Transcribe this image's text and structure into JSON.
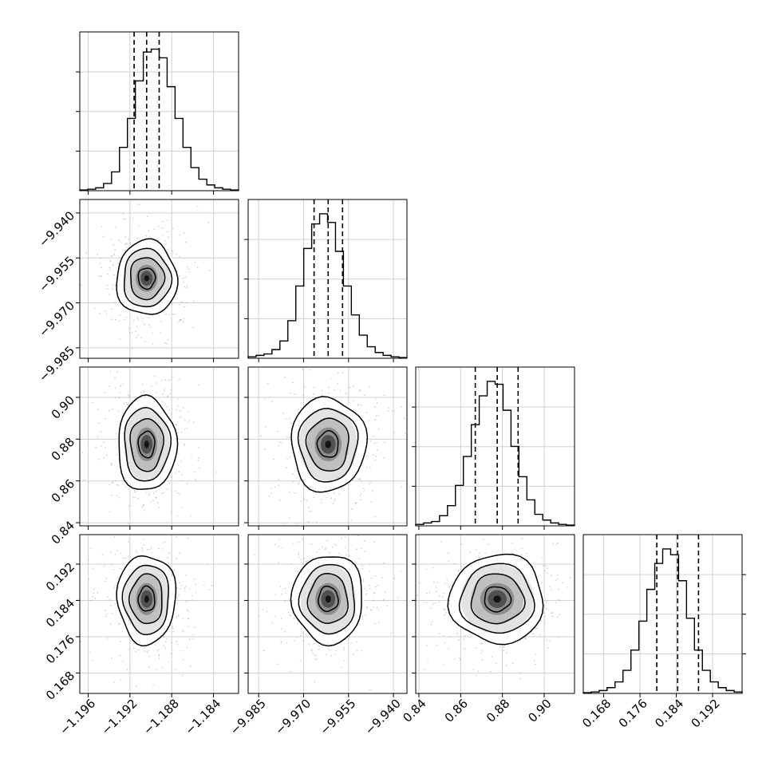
{
  "chart_data": {
    "type": "corner",
    "parameters": [
      {
        "range": [
          -1.1968,
          -1.1816
        ],
        "ticks": [
          -1.196,
          -1.192,
          -1.188,
          -1.184
        ],
        "tick_labels": [
          "−1.196",
          "−1.192",
          "−1.188",
          "−1.184"
        ]
      },
      {
        "range": [
          -9.9885,
          -9.9355
        ],
        "ticks": [
          -9.985,
          -9.97,
          -9.955,
          -9.94
        ],
        "tick_labels": [
          "−9.985",
          "−9.970",
          "−9.955",
          "−9.940"
        ]
      },
      {
        "range": [
          0.8385,
          0.9145
        ],
        "ticks": [
          0.84,
          0.86,
          0.88,
          0.9
        ],
        "tick_labels": [
          "0.84",
          "0.86",
          "0.88",
          "0.90"
        ]
      },
      {
        "range": [
          0.1635,
          0.1985
        ],
        "ticks": [
          0.168,
          0.176,
          0.184,
          0.192
        ],
        "tick_labels": [
          "0.168",
          "0.176",
          "0.184",
          "0.192"
        ]
      }
    ],
    "quantiles": [
      [
        -1.1916,
        -1.1904,
        -1.1892
      ],
      [
        -9.9665,
        -9.9618,
        -9.957
      ],
      [
        0.867,
        0.8775,
        0.8875
      ],
      [
        0.1797,
        0.1843,
        0.1889
      ]
    ],
    "histograms": [
      [
        0.005,
        0.01,
        0.02,
        0.05,
        0.13,
        0.3,
        0.5,
        0.76,
        0.96,
        0.98,
        0.92,
        0.72,
        0.5,
        0.3,
        0.16,
        0.08,
        0.04,
        0.02,
        0.01,
        0.005
      ],
      [
        0.01,
        0.02,
        0.03,
        0.06,
        0.12,
        0.26,
        0.5,
        0.76,
        0.93,
        1.0,
        0.94,
        0.74,
        0.5,
        0.3,
        0.16,
        0.08,
        0.04,
        0.02,
        0.01,
        0.005
      ],
      [
        0.01,
        0.02,
        0.03,
        0.07,
        0.14,
        0.28,
        0.48,
        0.7,
        0.9,
        1.0,
        0.98,
        0.8,
        0.55,
        0.34,
        0.18,
        0.08,
        0.04,
        0.02,
        0.01,
        0.005
      ],
      [
        0.005,
        0.01,
        0.02,
        0.04,
        0.08,
        0.16,
        0.3,
        0.5,
        0.72,
        0.9,
        1.0,
        0.96,
        0.78,
        0.52,
        0.3,
        0.16,
        0.08,
        0.04,
        0.02,
        0.01
      ]
    ],
    "pairs": [
      {
        "x": 0,
        "y": 1,
        "center": [
          -1.1904,
          -9.9618
        ],
        "radii": [
          0.0029,
          0.0125
        ]
      },
      {
        "x": 0,
        "y": 2,
        "center": [
          -1.1904,
          0.8775
        ],
        "radii": [
          0.0028,
          0.0225
        ]
      },
      {
        "x": 1,
        "y": 2,
        "center": [
          -9.9618,
          0.8775
        ],
        "radii": [
          0.0125,
          0.0225
        ]
      },
      {
        "x": 0,
        "y": 3,
        "center": [
          -1.1904,
          0.1843
        ],
        "radii": [
          0.0028,
          0.0098
        ]
      },
      {
        "x": 1,
        "y": 3,
        "center": [
          -9.9618,
          0.1843
        ],
        "radii": [
          0.0118,
          0.0098
        ]
      },
      {
        "x": 2,
        "y": 3,
        "center": [
          0.8775,
          0.1843
        ],
        "radii": [
          0.0225,
          0.0098
        ]
      }
    ],
    "grid": true,
    "legend": "none"
  }
}
